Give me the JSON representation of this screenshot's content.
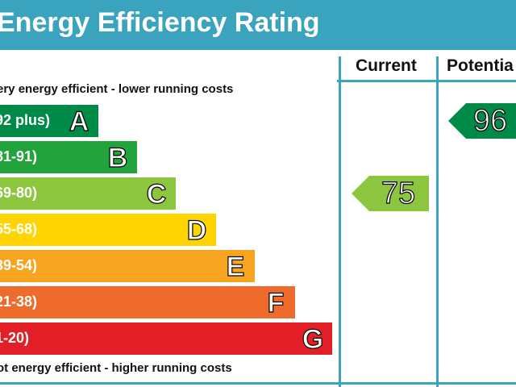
{
  "header": {
    "title": "Energy Efficiency Rating",
    "col_current": "Current",
    "col_potential": "Potentia"
  },
  "notes": {
    "top": "ery energy efficient - lower running costs",
    "bottom": "ot energy efficient - higher running costs"
  },
  "chart_data": {
    "type": "bar",
    "categories": [
      "A",
      "B",
      "C",
      "D",
      "E",
      "F",
      "G"
    ],
    "ranges": [
      "92 plus)",
      "81-91)",
      "69-80)",
      "55-68)",
      "39-54)",
      "21-38)",
      "1-20)"
    ],
    "colors": [
      "#008a47",
      "#22a33c",
      "#8cc63f",
      "#ffd400",
      "#f7a521",
      "#ee6b2b",
      "#e21f26"
    ],
    "current": {
      "value": "75",
      "band": "C",
      "color": "#8cc63f"
    },
    "potential": {
      "value": "96",
      "band": "A",
      "color": "#008a47"
    }
  }
}
